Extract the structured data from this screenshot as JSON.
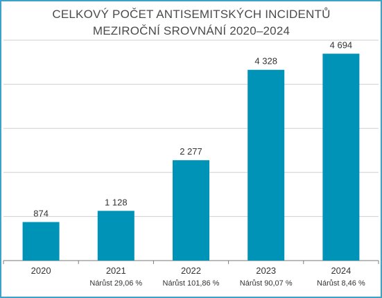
{
  "chart_data": {
    "type": "bar",
    "title": "CELKOVÝ POČET ANTISEMITSKÝCH INCIDENTŮ",
    "subtitle": "MEZIROČNÍ SROVNÁNÍ 2020–2024",
    "categories": [
      "2020",
      "2021",
      "2022",
      "2023",
      "2024"
    ],
    "values": [
      874,
      1128,
      2277,
      4328,
      4694
    ],
    "value_labels": [
      "874",
      "1 128",
      "2 277",
      "4 328",
      "4 694"
    ],
    "growth_labels": [
      "",
      "Nárůst 29,06 %",
      "Nárůst 101,86 %",
      "Nárůst 90,07 %",
      "Nárůst 8,46 %"
    ],
    "xlabel": "",
    "ylabel": "",
    "ylim": [
      0,
      5000
    ],
    "yticks": [
      0,
      1000,
      2000,
      3000,
      4000,
      5000
    ],
    "grid": true,
    "bar_color": "#0093b8",
    "border_color": "#3aa3c7"
  }
}
